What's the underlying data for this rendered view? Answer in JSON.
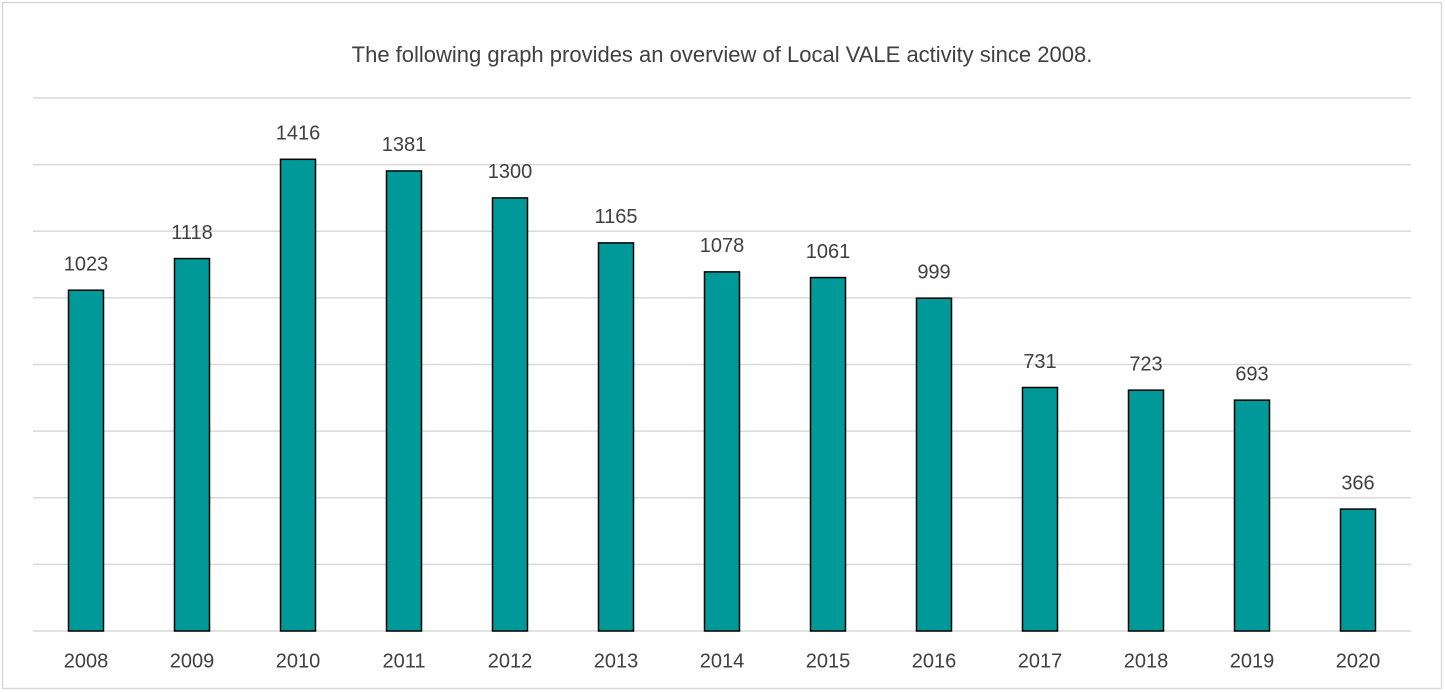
{
  "chart_data": {
    "type": "bar",
    "title": "The following graph provides an overview of Local VALE activity since 2008.",
    "categories": [
      "2008",
      "2009",
      "2010",
      "2011",
      "2012",
      "2013",
      "2014",
      "2015",
      "2016",
      "2017",
      "2018",
      "2019",
      "2020"
    ],
    "values": [
      1023,
      1118,
      1416,
      1381,
      1300,
      1165,
      1078,
      1061,
      999,
      731,
      723,
      693,
      366
    ],
    "color": "#009999",
    "ylim": [
      0,
      1600
    ],
    "yticks": [
      0,
      200,
      400,
      600,
      800,
      1000,
      1200,
      1400,
      1600
    ],
    "grid": true
  }
}
